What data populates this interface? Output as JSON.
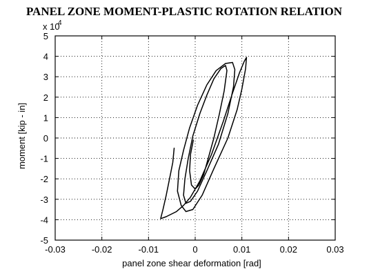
{
  "chart_data": {
    "type": "line",
    "title": "PANEL ZONE MOMENT-PLASTIC ROTATION RELATION",
    "xlabel": "panel zone shear deformation [rad]",
    "ylabel": "moment  [kip - in]",
    "y_multiplier_label": "x 10",
    "y_multiplier_exponent": "4",
    "xlim": [
      -0.03,
      0.03
    ],
    "ylim": [
      -5,
      5
    ],
    "x_ticks": [
      -0.03,
      -0.02,
      -0.01,
      0,
      0.01,
      0.02,
      0.03
    ],
    "x_tick_labels": [
      "-0.03",
      "-0.02",
      "-0.01",
      "0",
      "0.01",
      "0.02",
      "0.03"
    ],
    "y_ticks": [
      -5,
      -4,
      -3,
      -2,
      -1,
      0,
      1,
      2,
      3,
      4,
      5
    ],
    "y_tick_labels": [
      "-5",
      "-4",
      "-3",
      "-2",
      "-1",
      "0",
      "1",
      "2",
      "3",
      "4",
      "5"
    ],
    "grid": true,
    "series": [
      {
        "x": [
          -0.0045,
          -0.0048,
          -0.0055,
          -0.0062,
          -0.0069,
          -0.0074,
          -0.0062,
          -0.004,
          -0.0025,
          -0.001,
          0.001,
          0.0035,
          0.006,
          0.008,
          0.0095,
          0.0105,
          0.011,
          0.0108,
          0.01,
          0.009,
          0.007,
          0.004,
          0.0015,
          -0.0005,
          -0.002,
          -0.003,
          -0.0038,
          -0.0035,
          -0.0025,
          -0.0012,
          0.0005,
          0.0025,
          0.0045,
          0.0065,
          0.008,
          0.0085,
          0.0082,
          0.007,
          0.005,
          0.0025,
          0.0005,
          -0.001,
          -0.002,
          -0.0025,
          -0.0022,
          -0.0015,
          -0.0005,
          0.001,
          0.0025,
          0.004,
          0.0055,
          0.0065,
          0.0068,
          0.0062,
          0.0052,
          0.004,
          0.0028,
          0.0018,
          0.0008,
          0.0,
          -0.0008,
          -0.0012,
          -0.001,
          -0.0004
        ],
        "y": [
          -0.5,
          -1.2,
          -2.0,
          -2.8,
          -3.5,
          -3.95,
          -3.85,
          -3.6,
          -3.3,
          -2.9,
          -2.1,
          -0.8,
          0.8,
          2.2,
          3.2,
          3.75,
          3.95,
          3.4,
          2.4,
          1.4,
          0.0,
          -1.5,
          -2.8,
          -3.5,
          -3.6,
          -3.3,
          -2.6,
          -1.6,
          -0.6,
          0.5,
          1.6,
          2.6,
          3.3,
          3.65,
          3.7,
          3.35,
          2.5,
          1.2,
          -0.3,
          -1.6,
          -2.6,
          -3.1,
          -3.2,
          -2.8,
          -2.0,
          -1.0,
          0.1,
          1.2,
          2.1,
          2.9,
          3.4,
          3.55,
          3.3,
          2.3,
          1.2,
          0.0,
          -1.0,
          -1.8,
          -2.3,
          -2.5,
          -2.3,
          -1.6,
          -0.8,
          -0.1
        ]
      }
    ]
  }
}
